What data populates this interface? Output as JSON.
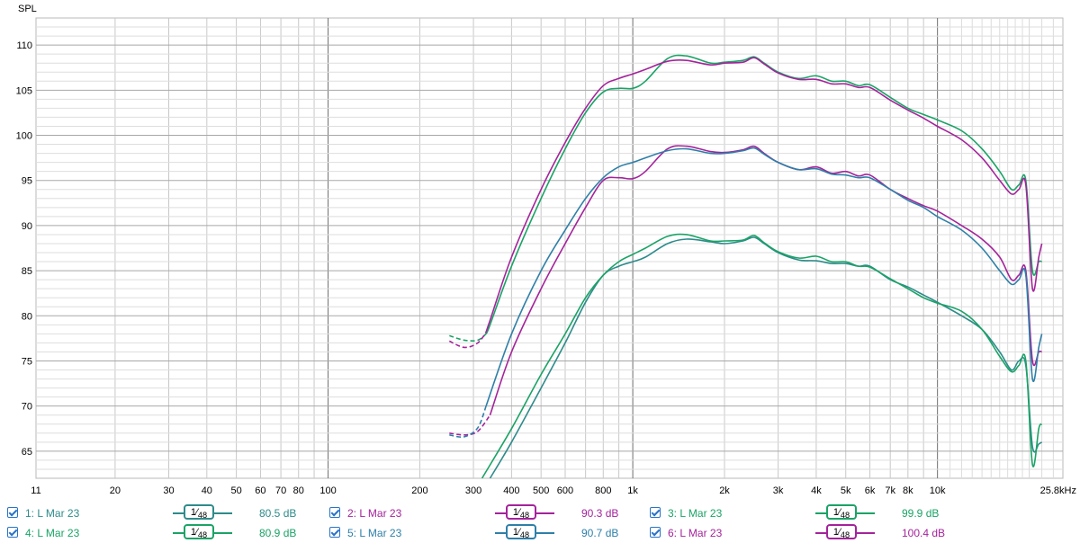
{
  "chart_data": {
    "type": "line",
    "ylabel": "SPL",
    "x_scale": "log",
    "xlim": [
      11,
      25800
    ],
    "ylim": [
      62,
      113
    ],
    "y_ticks": [
      65,
      70,
      75,
      80,
      85,
      90,
      95,
      100,
      105,
      110
    ],
    "x_tick_labels": [
      {
        "f": 11,
        "label": "11"
      },
      {
        "f": 20,
        "label": "20"
      },
      {
        "f": 30,
        "label": "30"
      },
      {
        "f": 40,
        "label": "40"
      },
      {
        "f": 50,
        "label": "50"
      },
      {
        "f": 60,
        "label": "60"
      },
      {
        "f": 70,
        "label": "70"
      },
      {
        "f": 80,
        "label": "80"
      },
      {
        "f": 100,
        "label": "100"
      },
      {
        "f": 200,
        "label": "200"
      },
      {
        "f": 300,
        "label": "300"
      },
      {
        "f": 400,
        "label": "400"
      },
      {
        "f": 500,
        "label": "500"
      },
      {
        "f": 600,
        "label": "600"
      },
      {
        "f": 800,
        "label": "800"
      },
      {
        "f": 1000,
        "label": "1k"
      },
      {
        "f": 2000,
        "label": "2k"
      },
      {
        "f": 3000,
        "label": "3k"
      },
      {
        "f": 4000,
        "label": "4k"
      },
      {
        "f": 5000,
        "label": "5k"
      },
      {
        "f": 6000,
        "label": "6k"
      },
      {
        "f": 7000,
        "label": "7k"
      },
      {
        "f": 8000,
        "label": "8k"
      },
      {
        "f": 10000,
        "label": "10k"
      },
      {
        "f": 25800,
        "label": "25.8kHz"
      }
    ],
    "grid": true,
    "series": [
      {
        "name": "1: L Mar 23",
        "color": "#2e8b8b",
        "smoothing": "1/48",
        "level": "80.5 dB",
        "dashed_until": 0,
        "points": [
          [
            340,
            62
          ],
          [
            400,
            66
          ],
          [
            500,
            72
          ],
          [
            600,
            77
          ],
          [
            700,
            81.5
          ],
          [
            800,
            84.5
          ],
          [
            900,
            85.5
          ],
          [
            1000,
            86
          ],
          [
            1100,
            86.5
          ],
          [
            1300,
            88
          ],
          [
            1500,
            88.5
          ],
          [
            1800,
            88.2
          ],
          [
            2000,
            88
          ],
          [
            2300,
            88.3
          ],
          [
            2500,
            88.7
          ],
          [
            2700,
            88
          ],
          [
            3000,
            87
          ],
          [
            3500,
            86.2
          ],
          [
            4000,
            86.1
          ],
          [
            4500,
            85.8
          ],
          [
            5000,
            85.8
          ],
          [
            5500,
            85.5
          ],
          [
            6000,
            85.5
          ],
          [
            7000,
            84
          ],
          [
            8000,
            83.2
          ],
          [
            9000,
            82.3
          ],
          [
            10000,
            81.5
          ],
          [
            12000,
            80
          ],
          [
            14000,
            78.5
          ],
          [
            16000,
            76
          ],
          [
            17500,
            74
          ],
          [
            18500,
            75
          ],
          [
            19500,
            74.5
          ],
          [
            20500,
            65.5
          ],
          [
            21500,
            65.8
          ],
          [
            22000,
            66
          ]
        ]
      },
      {
        "name": "2: L Mar 23",
        "color": "#a4239b",
        "smoothing": "1/48",
        "level": "90.3 dB",
        "dashed_until": 340,
        "points": [
          [
            250,
            67
          ],
          [
            280,
            66.8
          ],
          [
            310,
            67.2
          ],
          [
            340,
            69
          ],
          [
            400,
            76
          ],
          [
            500,
            83
          ],
          [
            600,
            88
          ],
          [
            700,
            92
          ],
          [
            800,
            95
          ],
          [
            900,
            95.3
          ],
          [
            1000,
            95.2
          ],
          [
            1100,
            96
          ],
          [
            1300,
            98.5
          ],
          [
            1500,
            98.8
          ],
          [
            1800,
            98.2
          ],
          [
            2000,
            98.1
          ],
          [
            2300,
            98.4
          ],
          [
            2500,
            98.8
          ],
          [
            2700,
            98
          ],
          [
            3000,
            97
          ],
          [
            3500,
            96.2
          ],
          [
            4000,
            96.5
          ],
          [
            4500,
            95.8
          ],
          [
            5000,
            96
          ],
          [
            5500,
            95.5
          ],
          [
            6000,
            95.6
          ],
          [
            7000,
            94
          ],
          [
            8000,
            93
          ],
          [
            9000,
            92.2
          ],
          [
            10000,
            91.6
          ],
          [
            12000,
            90
          ],
          [
            14000,
            88.5
          ],
          [
            16000,
            86.5
          ],
          [
            17500,
            84
          ],
          [
            18500,
            84.5
          ],
          [
            19500,
            85
          ],
          [
            20500,
            75
          ],
          [
            21500,
            76
          ],
          [
            22000,
            76
          ]
        ]
      },
      {
        "name": "3: L Mar 23",
        "color": "#1aa366",
        "smoothing": "1/48",
        "level": "99.9 dB",
        "dashed_until": 330,
        "points": [
          [
            250,
            77.8
          ],
          [
            280,
            77.3
          ],
          [
            310,
            77.3
          ],
          [
            330,
            78
          ],
          [
            340,
            79
          ],
          [
            400,
            85.5
          ],
          [
            500,
            93
          ],
          [
            600,
            98.5
          ],
          [
            700,
            102.5
          ],
          [
            800,
            104.8
          ],
          [
            900,
            105.2
          ],
          [
            1000,
            105.2
          ],
          [
            1100,
            106
          ],
          [
            1300,
            108.5
          ],
          [
            1500,
            108.8
          ],
          [
            1800,
            108
          ],
          [
            2000,
            108.1
          ],
          [
            2300,
            108.3
          ],
          [
            2500,
            108.7
          ],
          [
            2700,
            108
          ],
          [
            3000,
            107
          ],
          [
            3500,
            106.3
          ],
          [
            4000,
            106.6
          ],
          [
            4500,
            106
          ],
          [
            5000,
            106
          ],
          [
            5500,
            105.5
          ],
          [
            6000,
            105.6
          ],
          [
            7000,
            104.2
          ],
          [
            8000,
            103
          ],
          [
            9000,
            102.3
          ],
          [
            10000,
            101.7
          ],
          [
            12000,
            100.5
          ],
          [
            14000,
            98.5
          ],
          [
            16000,
            96
          ],
          [
            17500,
            94
          ],
          [
            18500,
            94.5
          ],
          [
            19500,
            95
          ],
          [
            20500,
            85
          ],
          [
            21500,
            86
          ],
          [
            22000,
            86
          ]
        ]
      },
      {
        "name": "4: L Mar 23",
        "color": "#1aa366",
        "smoothing": "1/48",
        "level": "80.9 dB",
        "dashed_until": 0,
        "points": [
          [
            320,
            62
          ],
          [
            400,
            67.5
          ],
          [
            500,
            73.5
          ],
          [
            600,
            78
          ],
          [
            700,
            82
          ],
          [
            800,
            84.5
          ],
          [
            900,
            86
          ],
          [
            1000,
            86.8
          ],
          [
            1100,
            87.5
          ],
          [
            1300,
            88.8
          ],
          [
            1500,
            89
          ],
          [
            1800,
            88.3
          ],
          [
            2000,
            88.3
          ],
          [
            2300,
            88.4
          ],
          [
            2500,
            88.9
          ],
          [
            2700,
            88.1
          ],
          [
            3000,
            87.1
          ],
          [
            3500,
            86.4
          ],
          [
            4000,
            86.6
          ],
          [
            4500,
            86
          ],
          [
            5000,
            86
          ],
          [
            5500,
            85.5
          ],
          [
            6000,
            85.4
          ],
          [
            7000,
            84.1
          ],
          [
            8000,
            83
          ],
          [
            9000,
            82
          ],
          [
            10000,
            81.4
          ],
          [
            12000,
            80.5
          ],
          [
            14000,
            78.5
          ],
          [
            16000,
            75.5
          ],
          [
            17500,
            73.8
          ],
          [
            18500,
            74.5
          ],
          [
            19500,
            75
          ],
          [
            20500,
            63.5
          ],
          [
            21500,
            67.5
          ],
          [
            22000,
            68
          ]
        ]
      },
      {
        "name": "5: L Mar 23",
        "color": "#2e7fa8",
        "smoothing": "1/48",
        "level": "90.7 dB",
        "dashed_until": 330,
        "points": [
          [
            250,
            66.8
          ],
          [
            280,
            66.6
          ],
          [
            310,
            67.6
          ],
          [
            330,
            70
          ],
          [
            400,
            78
          ],
          [
            500,
            85
          ],
          [
            600,
            89.5
          ],
          [
            700,
            93
          ],
          [
            800,
            95.3
          ],
          [
            900,
            96.5
          ],
          [
            1000,
            97
          ],
          [
            1100,
            97.5
          ],
          [
            1300,
            98.3
          ],
          [
            1500,
            98.5
          ],
          [
            1800,
            98
          ],
          [
            2000,
            98
          ],
          [
            2300,
            98.3
          ],
          [
            2500,
            98.6
          ],
          [
            2700,
            97.9
          ],
          [
            3000,
            97
          ],
          [
            3500,
            96.2
          ],
          [
            4000,
            96.3
          ],
          [
            4500,
            95.7
          ],
          [
            5000,
            95.6
          ],
          [
            5500,
            95.3
          ],
          [
            6000,
            95.3
          ],
          [
            7000,
            94
          ],
          [
            8000,
            92.8
          ],
          [
            9000,
            92
          ],
          [
            10000,
            91
          ],
          [
            12000,
            89.5
          ],
          [
            14000,
            87.5
          ],
          [
            16000,
            85
          ],
          [
            17500,
            83.5
          ],
          [
            18500,
            84
          ],
          [
            19500,
            84.5
          ],
          [
            20500,
            73
          ],
          [
            21500,
            76.5
          ],
          [
            22000,
            78
          ]
        ]
      },
      {
        "name": "6: L Mar 23",
        "color": "#a4239b",
        "smoothing": "1/48",
        "level": "100.4 dB",
        "dashed_until": 330,
        "points": [
          [
            250,
            77.2
          ],
          [
            280,
            76.5
          ],
          [
            310,
            77
          ],
          [
            330,
            78.2
          ],
          [
            340,
            79.5
          ],
          [
            400,
            86.5
          ],
          [
            500,
            94
          ],
          [
            600,
            99.2
          ],
          [
            700,
            103
          ],
          [
            800,
            105.5
          ],
          [
            900,
            106.3
          ],
          [
            1000,
            106.8
          ],
          [
            1100,
            107.3
          ],
          [
            1300,
            108.2
          ],
          [
            1500,
            108.3
          ],
          [
            1800,
            107.8
          ],
          [
            2000,
            108
          ],
          [
            2300,
            108.1
          ],
          [
            2500,
            108.6
          ],
          [
            2700,
            107.9
          ],
          [
            3000,
            106.9
          ],
          [
            3500,
            106.2
          ],
          [
            4000,
            106.2
          ],
          [
            4500,
            105.7
          ],
          [
            5000,
            105.7
          ],
          [
            5500,
            105.3
          ],
          [
            6000,
            105.3
          ],
          [
            7000,
            103.9
          ],
          [
            8000,
            102.8
          ],
          [
            9000,
            101.9
          ],
          [
            10000,
            101
          ],
          [
            12000,
            99.5
          ],
          [
            14000,
            97.5
          ],
          [
            16000,
            95
          ],
          [
            17500,
            93.5
          ],
          [
            18500,
            94
          ],
          [
            19500,
            94.5
          ],
          [
            20500,
            83
          ],
          [
            21500,
            86.5
          ],
          [
            22000,
            88
          ]
        ]
      }
    ]
  },
  "legend": [
    {
      "label": "1: L Mar 23",
      "smoothing_num": "1",
      "smoothing_den": "48",
      "value": "80.5 dB",
      "color": "#2e8b8b"
    },
    {
      "label": "2: L Mar 23",
      "smoothing_num": "1",
      "smoothing_den": "48",
      "value": "90.3 dB",
      "color": "#a4239b"
    },
    {
      "label": "3: L Mar 23",
      "smoothing_num": "1",
      "smoothing_den": "48",
      "value": "99.9 dB",
      "color": "#1aa366"
    },
    {
      "label": "4: L Mar 23",
      "smoothing_num": "1",
      "smoothing_den": "48",
      "value": "80.9 dB",
      "color": "#1aa366"
    },
    {
      "label": "5: L Mar 23",
      "smoothing_num": "1",
      "smoothing_den": "48",
      "value": "90.7 dB",
      "color": "#2e7fa8"
    },
    {
      "label": "6: L Mar 23",
      "smoothing_num": "1",
      "smoothing_den": "48",
      "value": "100.4 dB",
      "color": "#a4239b"
    }
  ]
}
